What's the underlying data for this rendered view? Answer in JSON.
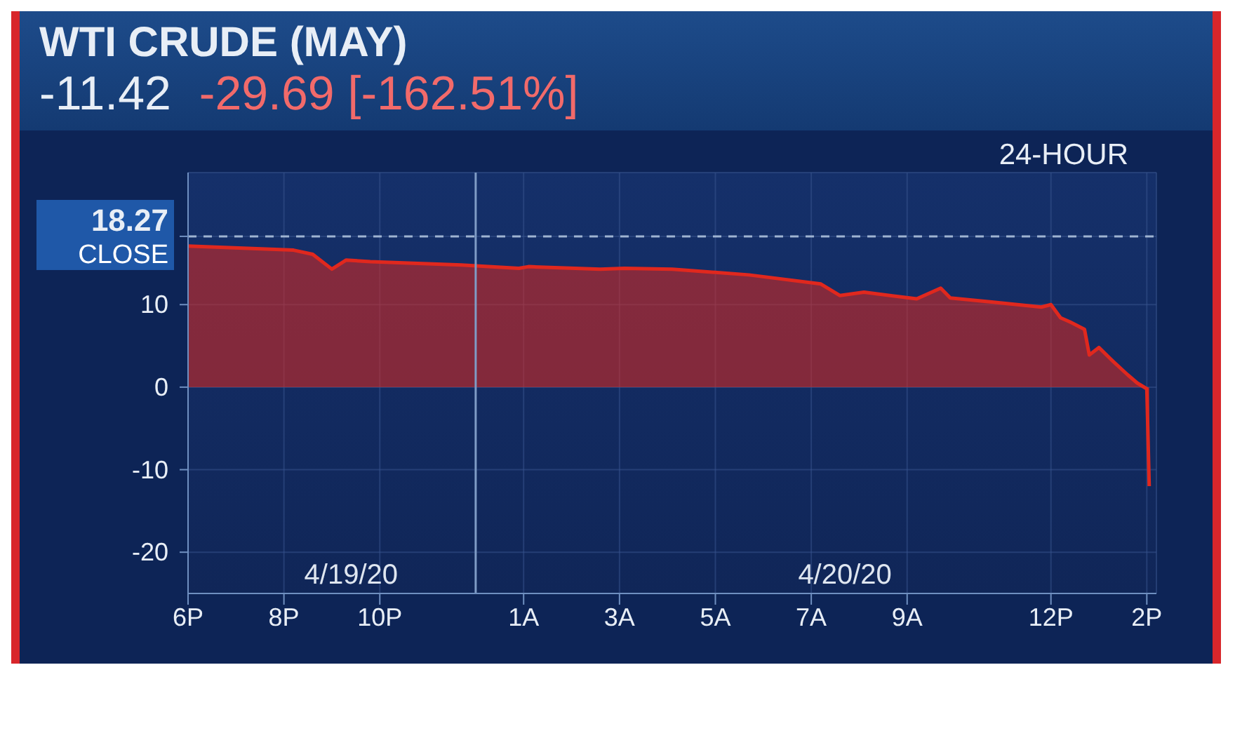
{
  "chart_data": {
    "type": "area",
    "title": "WTI CRUDE (MAY)",
    "subtitle": "-11.42",
    "annotations": [
      "-29.69 [-162.51%]",
      "24-HOUR",
      "4/19/20",
      "4/20/20"
    ],
    "x": [
      "--04-19T18:00",
      "--04-19T20:12",
      "--04-19T20:36",
      "--04-19T21:00",
      "--04-19T21:18",
      "--04-19T21:48",
      "--04-19T23:42",
      "--04-20T00:54",
      "--04-20T01:06",
      "--04-20T02:36",
      "--04-20T03:06",
      "--04-20T04:06",
      "--04-20T05:42",
      "--04-20T07:12",
      "--04-20T07:36",
      "--04-20T08:06",
      "--04-20T09:12",
      "--04-20T09:42",
      "--04-20T09:54",
      "--04-20T10:48",
      "--04-20T11:48",
      "--04-20T12:00",
      "--04-20T12:12",
      "--04-20T12:24",
      "--04-20T12:42",
      "--04-20T12:48",
      "--04-20T13:00",
      "--04-20T13:18",
      "--04-20T13:36",
      "--04-20T13:48",
      "--04-20T14:00",
      "--04-20T14:03"
    ],
    "series": [
      {
        "color": "#e0281e",
        "values": [
          17.1,
          16.6,
          16.1,
          14.3,
          15.4,
          15.2,
          14.8,
          14.4,
          14.6,
          14.3,
          14.4,
          14.3,
          13.6,
          12.5,
          11.1,
          11.5,
          10.7,
          12.0,
          10.8,
          10.3,
          9.7,
          10.0,
          8.4,
          7.9,
          7.0,
          3.9,
          4.8,
          3.1,
          1.5,
          0.5,
          -0.2,
          -12
        ]
      }
    ],
    "xlim": [
      "--04-19T18:00",
      "--04-20T14:12"
    ],
    "xticks": [
      {
        "value": "--04-19T18:00",
        "label": "6P"
      },
      {
        "value": "--04-19T20:00",
        "label": "8P"
      },
      {
        "value": "--04-19T22:00",
        "label": "10P"
      },
      {
        "value": "--04-20T01:00",
        "label": "1A"
      },
      {
        "value": "--04-20T03:00",
        "label": "3A"
      },
      {
        "value": "--04-20T05:00",
        "label": "5A"
      },
      {
        "value": "--04-20T07:00",
        "label": "7A"
      },
      {
        "value": "--04-20T09:00",
        "label": "9A"
      },
      {
        "value": "--04-20T12:00",
        "label": "12P"
      },
      {
        "value": "--04-20T14:00",
        "label": "2P"
      }
    ],
    "ylim": [
      -25,
      26
    ],
    "yticks": [
      -20,
      -10,
      0,
      10,
      18.27
    ],
    "ref_lines": [
      {
        "axis": "y",
        "value": 18.27,
        "label": "CLOSE",
        "line_style": "dashed",
        "color": "#9fb3d1"
      },
      {
        "axis": "x",
        "value": "--04-20T00:00",
        "label": null,
        "line_style": "solid",
        "color": "#7f9cc6"
      }
    ],
    "grid": true,
    "marker": "none",
    "line_style": "solid"
  }
}
